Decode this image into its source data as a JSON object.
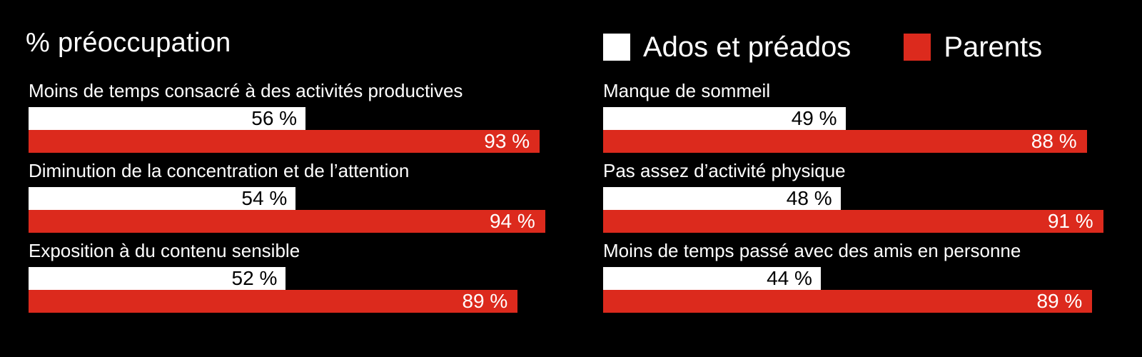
{
  "title": "% préoccupation",
  "legend": {
    "items": [
      {
        "label": "Ados et préados",
        "color": "#ffffff"
      },
      {
        "label": "Parents",
        "color": "#dc2a1d"
      }
    ]
  },
  "colors": {
    "background": "#000000",
    "text": "#ffffff",
    "bar_ados": "#ffffff",
    "bar_parents": "#dc2a1d",
    "value_on_ados": "#000000",
    "value_on_parents": "#ffffff"
  },
  "chart_data": {
    "type": "bar",
    "orientation": "horizontal",
    "title": "% préoccupation",
    "unit": "%",
    "xlim": [
      0,
      100
    ],
    "grid": false,
    "legend_position": "top-right",
    "series_names": [
      "Ados et préados",
      "Parents"
    ],
    "columns": [
      {
        "rows": [
          {
            "label": "Moins de temps consacré à des activités productives",
            "ados": 56,
            "parents": 93,
            "ados_label": "56 %",
            "parents_label": "93 %"
          },
          {
            "label": "Diminution de la concentration et de l’attention",
            "ados": 54,
            "parents": 94,
            "ados_label": "54 %",
            "parents_label": "94 %"
          },
          {
            "label": "Exposition à du contenu sensible",
            "ados": 52,
            "parents": 89,
            "ados_label": "52 %",
            "parents_label": "89 %"
          }
        ]
      },
      {
        "rows": [
          {
            "label": "Manque de sommeil",
            "ados": 49,
            "parents": 88,
            "ados_label": "49 %",
            "parents_label": "88 %"
          },
          {
            "label": "Pas assez d’activité physique",
            "ados": 48,
            "parents": 91,
            "ados_label": "48 %",
            "parents_label": "91 %"
          },
          {
            "label": "Moins de temps passé avec des amis en personne",
            "ados": 44,
            "parents": 89,
            "ados_label": "44 %",
            "parents_label": "89 %"
          }
        ]
      }
    ]
  }
}
